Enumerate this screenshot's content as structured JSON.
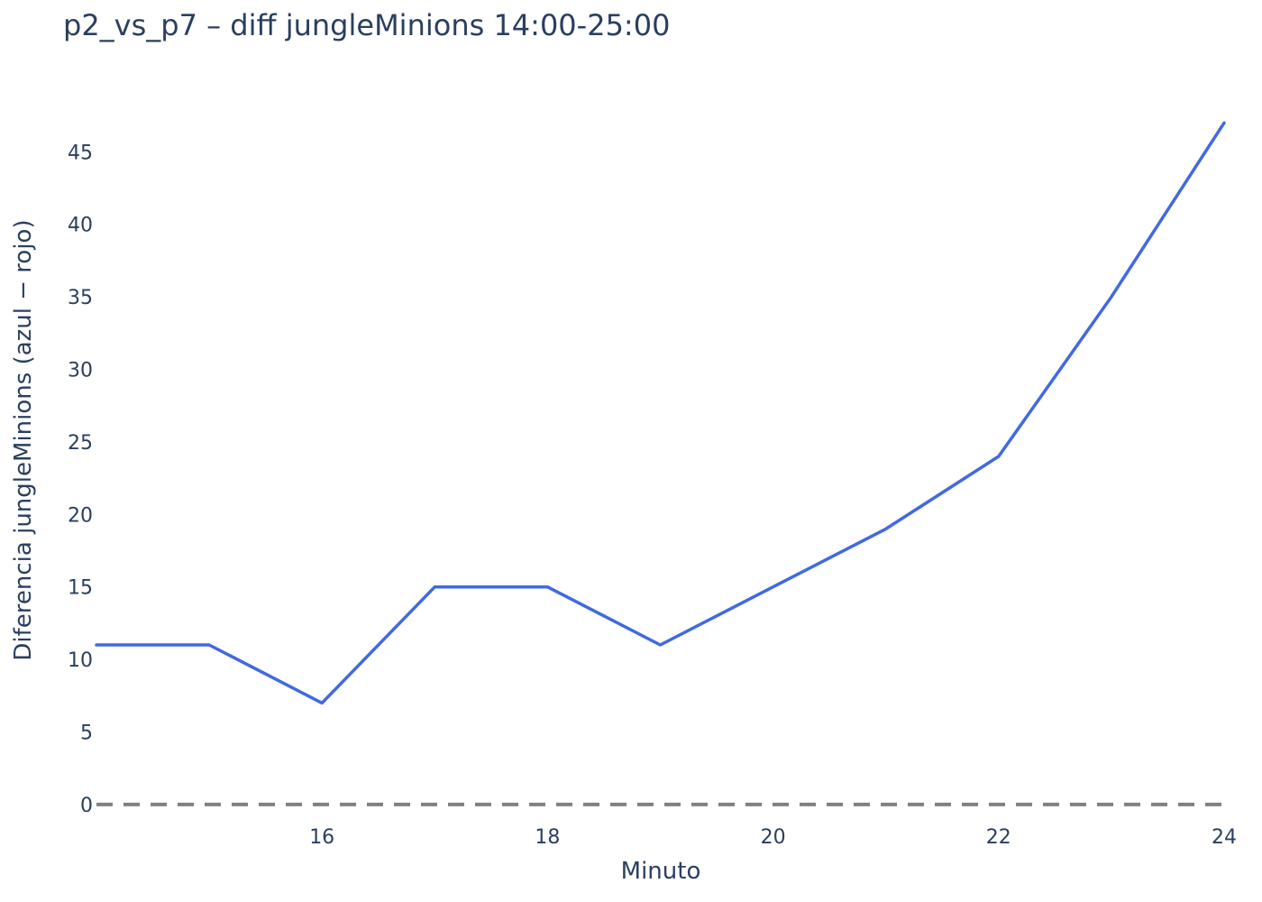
{
  "chart_data": {
    "type": "line",
    "title": "p2_vs_p7 – diff jungleMinions 14:00-25:00",
    "xlabel": "Minuto",
    "ylabel": "Diferencia jungleMinions (azul − rojo)",
    "x": [
      14,
      15,
      16,
      17,
      18,
      19,
      20,
      21,
      22,
      23,
      24
    ],
    "series": [
      {
        "values": [
          11,
          11,
          7,
          15,
          15,
          11,
          15,
          19,
          24,
          35,
          47
        ],
        "color": "#4169e1"
      }
    ],
    "xlim": [
      14,
      24
    ],
    "ylim": [
      -1,
      49
    ],
    "xticks": [
      16,
      18,
      20,
      22,
      24
    ],
    "yticks": [
      0,
      5,
      10,
      15,
      20,
      25,
      30,
      35,
      40,
      45
    ],
    "reference_line": {
      "y": 0,
      "style": "dashed",
      "color": "#808080"
    },
    "grid": false,
    "legend": "none"
  }
}
